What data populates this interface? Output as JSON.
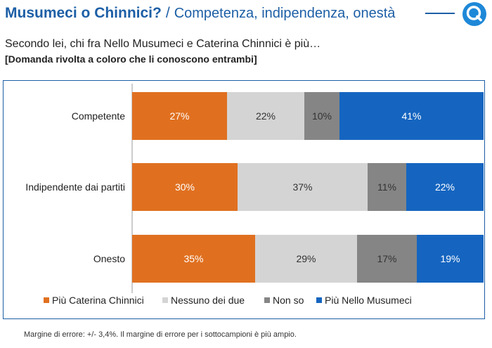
{
  "header": {
    "title_main": "Musumeci o Chinnici?",
    "title_sep": "/",
    "title_sub": "Competenza, indipendenza, onestà",
    "logo_icon": "search-q-icon"
  },
  "question": "Secondo lei, chi fra Nello Musumeci e Caterina Chinnici è più…",
  "note": "[Domanda rivolta a coloro che li conoscono entrambi]",
  "footer": "Margine di errore: +/- 3,4%. Il margine di errore per i sottocampioni è più ampio.",
  "colors": {
    "accent": "#1d5fa6",
    "series": [
      "#e07020",
      "#d4d4d4",
      "#858585",
      "#1565c0"
    ],
    "label_light": "#ffffff",
    "label_dark": "#333333"
  },
  "chart_data": {
    "type": "bar",
    "orientation": "horizontal",
    "stacked": true,
    "unit": "%",
    "xlim": [
      0,
      100
    ],
    "categories": [
      "Competente",
      "Indipendente dai partiti",
      "Onesto"
    ],
    "series": [
      {
        "name": "Più Caterina Chinnici",
        "values": [
          27,
          30,
          35
        ]
      },
      {
        "name": "Nessuno dei due",
        "values": [
          22,
          37,
          29
        ]
      },
      {
        "name": "Non so",
        "values": [
          10,
          11,
          17
        ]
      },
      {
        "name": "Più Nello Musumeci",
        "values": [
          41,
          22,
          19
        ]
      }
    ],
    "legend_position": "bottom"
  }
}
